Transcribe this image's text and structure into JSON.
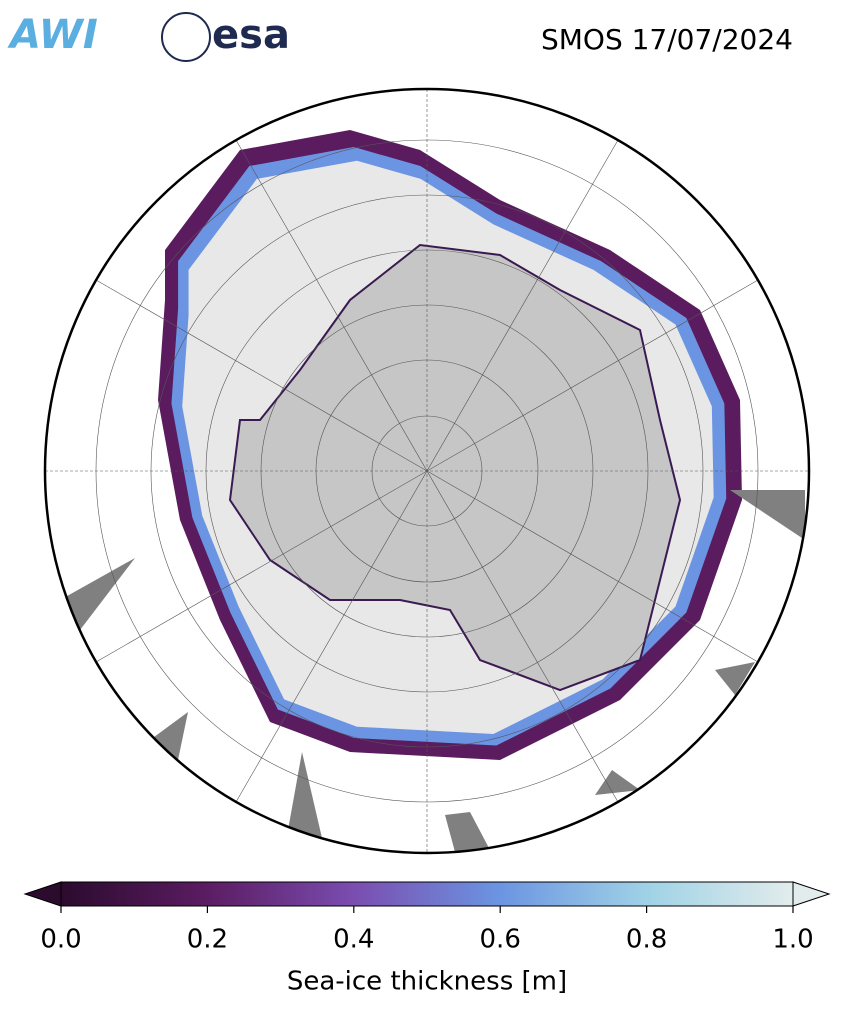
{
  "header": {
    "logos": [
      "AWI",
      "esa"
    ],
    "title": "SMOS 17/07/2024"
  },
  "colorbar": {
    "label": "Sea-ice thickness [m]",
    "lim": [
      0,
      1
    ],
    "ticks": [
      {
        "value": 0,
        "label": "0.0"
      },
      {
        "value": 0.2,
        "label": "0.2"
      },
      {
        "value": 0.4,
        "label": "0.4"
      },
      {
        "value": 0.6,
        "label": "0.6"
      },
      {
        "value": 0.8,
        "label": "0.8"
      },
      {
        "value": 1,
        "label": "1.0"
      }
    ],
    "colors": [
      "#2b0b2e",
      "#5b1c62",
      "#7a4db0",
      "#6b95e2",
      "#9fd2e6",
      "#e2ecec"
    ]
  }
}
